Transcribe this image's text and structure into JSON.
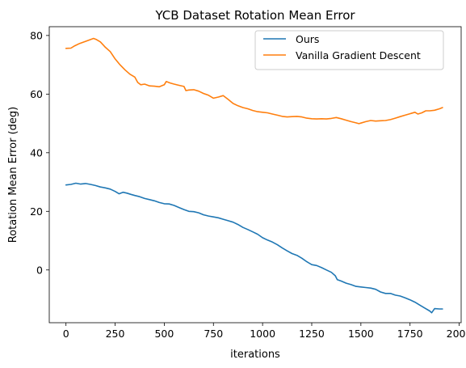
{
  "chart_data": {
    "type": "line",
    "title": "YCB Dataset Rotation Mean Error",
    "xlabel": "iterations",
    "ylabel": "Rotation Mean Error (deg)",
    "xlim": [
      -85,
      2010
    ],
    "ylim": [
      -18,
      83
    ],
    "xticks": [
      0,
      250,
      500,
      750,
      1000,
      1250,
      1500,
      1750,
      2000
    ],
    "yticks": [
      0,
      20,
      40,
      60,
      80
    ],
    "grid": false,
    "legend_position": "top-right",
    "series": [
      {
        "name": "Ours",
        "color": "#1f77b4",
        "points": [
          [
            0,
            29
          ],
          [
            25,
            29.2
          ],
          [
            50,
            29.6
          ],
          [
            75,
            29.3
          ],
          [
            100,
            29.5
          ],
          [
            125,
            29.2
          ],
          [
            150,
            28.8
          ],
          [
            175,
            28.3
          ],
          [
            200,
            28
          ],
          [
            225,
            27.6
          ],
          [
            250,
            26.8
          ],
          [
            270,
            26
          ],
          [
            290,
            26.5
          ],
          [
            310,
            26.2
          ],
          [
            330,
            25.8
          ],
          [
            350,
            25.4
          ],
          [
            375,
            25
          ],
          [
            400,
            24.4
          ],
          [
            425,
            24
          ],
          [
            450,
            23.6
          ],
          [
            475,
            23
          ],
          [
            500,
            22.6
          ],
          [
            525,
            22.5
          ],
          [
            550,
            22
          ],
          [
            575,
            21.3
          ],
          [
            600,
            20.6
          ],
          [
            625,
            20
          ],
          [
            650,
            19.9
          ],
          [
            675,
            19.5
          ],
          [
            700,
            18.8
          ],
          [
            725,
            18.4
          ],
          [
            750,
            18.1
          ],
          [
            775,
            17.8
          ],
          [
            800,
            17.3
          ],
          [
            825,
            16.8
          ],
          [
            850,
            16.3
          ],
          [
            875,
            15.5
          ],
          [
            900,
            14.5
          ],
          [
            925,
            13.8
          ],
          [
            950,
            13
          ],
          [
            975,
            12.2
          ],
          [
            1000,
            11
          ],
          [
            1025,
            10.2
          ],
          [
            1050,
            9.5
          ],
          [
            1075,
            8.6
          ],
          [
            1100,
            7.5
          ],
          [
            1125,
            6.5
          ],
          [
            1150,
            5.6
          ],
          [
            1175,
            5
          ],
          [
            1200,
            4
          ],
          [
            1225,
            2.8
          ],
          [
            1250,
            1.8
          ],
          [
            1275,
            1.5
          ],
          [
            1300,
            0.8
          ],
          [
            1325,
            0
          ],
          [
            1350,
            -0.8
          ],
          [
            1370,
            -2
          ],
          [
            1380,
            -3.3
          ],
          [
            1400,
            -3.8
          ],
          [
            1425,
            -4.5
          ],
          [
            1450,
            -5
          ],
          [
            1475,
            -5.6
          ],
          [
            1500,
            -5.8
          ],
          [
            1525,
            -6
          ],
          [
            1550,
            -6.2
          ],
          [
            1575,
            -6.6
          ],
          [
            1600,
            -7.5
          ],
          [
            1625,
            -8
          ],
          [
            1650,
            -8
          ],
          [
            1675,
            -8.6
          ],
          [
            1700,
            -8.9
          ],
          [
            1725,
            -9.5
          ],
          [
            1750,
            -10.2
          ],
          [
            1775,
            -11
          ],
          [
            1800,
            -12
          ],
          [
            1825,
            -13
          ],
          [
            1850,
            -14
          ],
          [
            1860,
            -14.6
          ],
          [
            1875,
            -13.2
          ],
          [
            1900,
            -13.3
          ],
          [
            1915,
            -13.3
          ]
        ]
      },
      {
        "name": "Vanilla Gradient Descent",
        "color": "#ff7f0e",
        "points": [
          [
            0,
            75.6
          ],
          [
            25,
            75.7
          ],
          [
            45,
            76.5
          ],
          [
            70,
            77.3
          ],
          [
            100,
            78
          ],
          [
            125,
            78.6
          ],
          [
            140,
            79
          ],
          [
            155,
            78.6
          ],
          [
            175,
            77.8
          ],
          [
            200,
            76
          ],
          [
            225,
            74.5
          ],
          [
            250,
            72
          ],
          [
            275,
            70
          ],
          [
            300,
            68.3
          ],
          [
            325,
            66.8
          ],
          [
            350,
            65.8
          ],
          [
            365,
            64
          ],
          [
            380,
            63.2
          ],
          [
            400,
            63.4
          ],
          [
            425,
            62.8
          ],
          [
            450,
            62.7
          ],
          [
            475,
            62.5
          ],
          [
            500,
            63.2
          ],
          [
            510,
            64.3
          ],
          [
            530,
            63.8
          ],
          [
            550,
            63.4
          ],
          [
            575,
            63
          ],
          [
            600,
            62.6
          ],
          [
            610,
            61.2
          ],
          [
            625,
            61.4
          ],
          [
            650,
            61.5
          ],
          [
            675,
            61
          ],
          [
            700,
            60.2
          ],
          [
            725,
            59.6
          ],
          [
            750,
            58.6
          ],
          [
            775,
            59
          ],
          [
            800,
            59.5
          ],
          [
            825,
            58.2
          ],
          [
            850,
            56.8
          ],
          [
            875,
            56
          ],
          [
            900,
            55.4
          ],
          [
            925,
            55
          ],
          [
            950,
            54.4
          ],
          [
            975,
            54
          ],
          [
            1000,
            53.8
          ],
          [
            1025,
            53.6
          ],
          [
            1050,
            53.2
          ],
          [
            1075,
            52.8
          ],
          [
            1100,
            52.4
          ],
          [
            1125,
            52.2
          ],
          [
            1150,
            52.3
          ],
          [
            1175,
            52.4
          ],
          [
            1200,
            52.2
          ],
          [
            1225,
            51.8
          ],
          [
            1250,
            51.6
          ],
          [
            1275,
            51.5
          ],
          [
            1300,
            51.6
          ],
          [
            1325,
            51.5
          ],
          [
            1350,
            51.7
          ],
          [
            1375,
            52
          ],
          [
            1400,
            51.6
          ],
          [
            1425,
            51.1
          ],
          [
            1450,
            50.6
          ],
          [
            1475,
            50.2
          ],
          [
            1490,
            49.9
          ],
          [
            1500,
            50.1
          ],
          [
            1525,
            50.6
          ],
          [
            1550,
            51
          ],
          [
            1575,
            50.8
          ],
          [
            1600,
            50.9
          ],
          [
            1625,
            51
          ],
          [
            1650,
            51.3
          ],
          [
            1675,
            51.8
          ],
          [
            1700,
            52.3
          ],
          [
            1725,
            52.8
          ],
          [
            1750,
            53.3
          ],
          [
            1775,
            53.8
          ],
          [
            1790,
            53.2
          ],
          [
            1810,
            53.6
          ],
          [
            1830,
            54.3
          ],
          [
            1850,
            54.3
          ],
          [
            1875,
            54.5
          ],
          [
            1900,
            55
          ],
          [
            1915,
            55.4
          ]
        ]
      }
    ]
  }
}
